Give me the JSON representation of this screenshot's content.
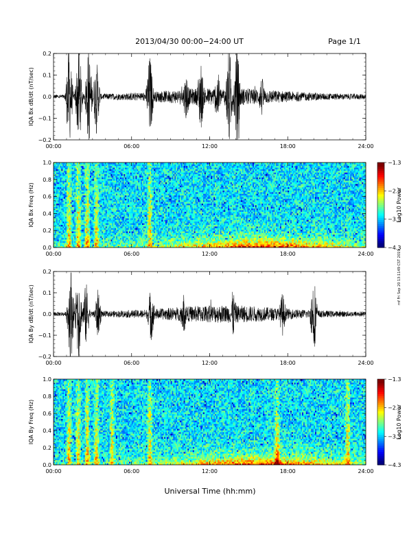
{
  "header": {
    "title": "2013/04/30  00:00−24:00 UT",
    "page": "Page 1/1"
  },
  "side_stamp": "rnf Fri Sep 20 13:1149 CST 2019",
  "chart_data": [
    {
      "type": "line",
      "ylabel": "IQA Bx dB/dt (nT/sec)",
      "x_ticks": [
        "00:00",
        "06:00",
        "12:00",
        "18:00",
        "24:00"
      ],
      "xlim": [
        0,
        24
      ],
      "ylim": [
        -0.2,
        0.2
      ],
      "y_ticks": [
        "0.2",
        "0.1",
        "0.0",
        "−0.1",
        "−0.2"
      ],
      "bursts": [
        {
          "t": 1.2,
          "amp": 0.25
        },
        {
          "t": 1.95,
          "amp": 0.25
        },
        {
          "t": 2.7,
          "amp": 0.25
        },
        {
          "t": 3.3,
          "amp": 0.18
        },
        {
          "t": 7.4,
          "amp": 0.21
        },
        {
          "t": 10.2,
          "amp": 0.12
        },
        {
          "t": 11.3,
          "amp": 0.18
        },
        {
          "t": 12.6,
          "amp": 0.13
        },
        {
          "t": 13.5,
          "amp": 0.25
        },
        {
          "t": 14.1,
          "amp": 0.25
        },
        {
          "t": 16.0,
          "amp": 0.1
        }
      ]
    },
    {
      "type": "heatmap",
      "ylabel": "IQA Bx Freq (Hz)",
      "x_ticks": [
        "00:00",
        "06:00",
        "12:00",
        "18:00",
        "24:00"
      ],
      "xlim": [
        0,
        24
      ],
      "ylim": [
        0,
        1.0
      ],
      "y_ticks": [
        "1.0",
        "0.8",
        "0.6",
        "0.4",
        "0.2",
        "0.0"
      ],
      "colorbar": {
        "label": "Log10 Power",
        "ticks": [
          "−1.3",
          "−2.3",
          "−3.3",
          "−4.3"
        ],
        "range": [
          -4.3,
          -1.3
        ]
      },
      "bright_columns": [
        1.2,
        1.9,
        2.6,
        3.3,
        7.4
      ]
    },
    {
      "type": "line",
      "ylabel": "IQA By dB/dt (nT/sec)",
      "x_ticks": [
        "00:00",
        "06:00",
        "12:00",
        "18:00",
        "24:00"
      ],
      "xlim": [
        0,
        24
      ],
      "ylim": [
        -0.2,
        0.2
      ],
      "y_ticks": [
        "0.2",
        "0.1",
        "0.0",
        "−0.1",
        "−0.2"
      ],
      "bursts": [
        {
          "t": 1.3,
          "amp": 0.25
        },
        {
          "t": 1.9,
          "amp": 0.25
        },
        {
          "t": 2.5,
          "amp": 0.16
        },
        {
          "t": 3.4,
          "amp": 0.12
        },
        {
          "t": 7.5,
          "amp": 0.14
        },
        {
          "t": 10.0,
          "amp": 0.1
        },
        {
          "t": 13.8,
          "amp": 0.12
        },
        {
          "t": 17.6,
          "amp": 0.11
        },
        {
          "t": 20.0,
          "amp": 0.2
        }
      ]
    },
    {
      "type": "heatmap",
      "ylabel": "IQA By Freq (Hz)",
      "x_ticks": [
        "00:00",
        "06:00",
        "12:00",
        "18:00",
        "24:00"
      ],
      "xlim": [
        0,
        24
      ],
      "ylim": [
        0,
        1.0
      ],
      "y_ticks": [
        "1.0",
        "0.8",
        "0.6",
        "0.4",
        "0.2",
        "0.0"
      ],
      "colorbar": {
        "label": "Log10 Power",
        "ticks": [
          "−1.3",
          "−2.3",
          "−3.3",
          "−4.3"
        ],
        "range": [
          -4.3,
          -1.3
        ]
      },
      "bright_columns": [
        1.2,
        1.9,
        2.6,
        3.3,
        4.5,
        7.4,
        17.2,
        22.6
      ]
    }
  ],
  "xlabel": "Universal Time (hh:mm)"
}
